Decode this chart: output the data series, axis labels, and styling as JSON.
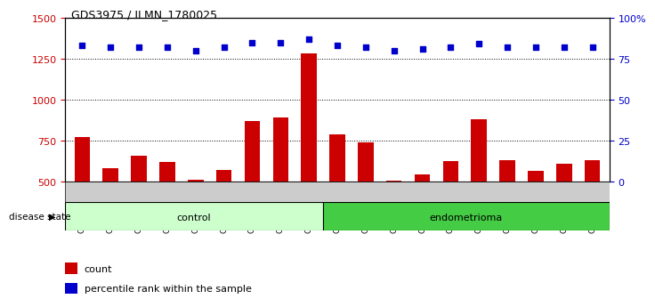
{
  "title": "GDS3975 / ILMN_1780025",
  "samples": [
    "GSM572752",
    "GSM572753",
    "GSM572754",
    "GSM572755",
    "GSM572756",
    "GSM572757",
    "GSM572761",
    "GSM572762",
    "GSM572764",
    "GSM572747",
    "GSM572748",
    "GSM572749",
    "GSM572750",
    "GSM572751",
    "GSM572758",
    "GSM572759",
    "GSM572760",
    "GSM572763",
    "GSM572765"
  ],
  "counts": [
    770,
    580,
    660,
    620,
    510,
    570,
    870,
    890,
    1280,
    790,
    740,
    505,
    545,
    625,
    880,
    630,
    565,
    610,
    630
  ],
  "percentiles": [
    83,
    82,
    82,
    82,
    80,
    82,
    85,
    85,
    87,
    83,
    82,
    80,
    81,
    82,
    84,
    82,
    82,
    82,
    82
  ],
  "n_control": 9,
  "n_endometrioma": 10,
  "bar_color": "#cc0000",
  "dot_color": "#0000cc",
  "ylim_left": [
    500,
    1500
  ],
  "ylim_right": [
    0,
    100
  ],
  "yticks_left": [
    500,
    750,
    1000,
    1250,
    1500
  ],
  "yticks_right": [
    0,
    25,
    50,
    75,
    100
  ],
  "grid_lines": [
    750,
    1000,
    1250
  ],
  "control_color": "#ccffcc",
  "endometrioma_color": "#44cc44",
  "plot_bg": "#e8e8e8",
  "tick_bg": "#d0d0d0"
}
